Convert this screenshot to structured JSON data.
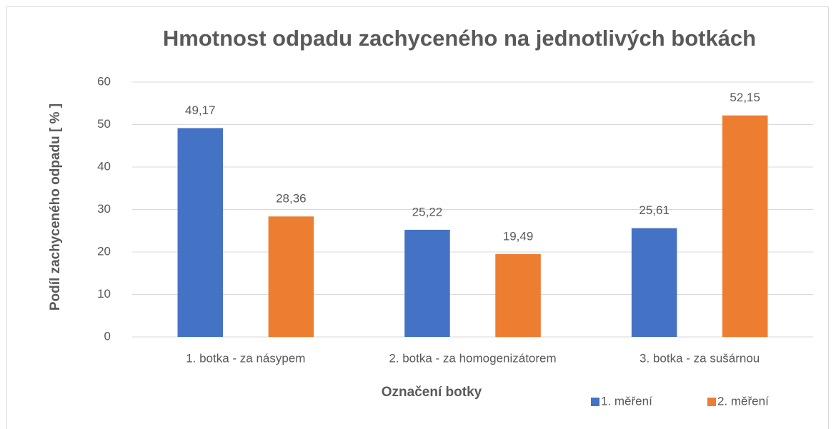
{
  "chart_data": {
    "type": "bar",
    "title": "Hmotnost odpadu zachyceného na jednotlivých botkách",
    "x_label": "Označení botky",
    "y_label": "Podíl zachyceného odpadu [ % ]",
    "categories": [
      "1. botka - za násypem",
      "2. botka - za homogenizátorem",
      "3. botka - za sušárnou"
    ],
    "series": [
      {
        "name": "1. měření",
        "color": "#4472c4",
        "values": [
          49.17,
          25.22,
          25.61
        ],
        "value_labels": [
          "49,17",
          "25,22",
          "25,61"
        ]
      },
      {
        "name": "2. měření",
        "color": "#ed7d31",
        "values": [
          28.36,
          19.49,
          52.15
        ],
        "value_labels": [
          "28,36",
          "19,49",
          "52,15"
        ]
      }
    ],
    "ylim": [
      0,
      60
    ],
    "yticks": [
      0,
      10,
      20,
      30,
      40,
      50,
      60
    ],
    "grid": true,
    "legend": "bottom-right"
  }
}
